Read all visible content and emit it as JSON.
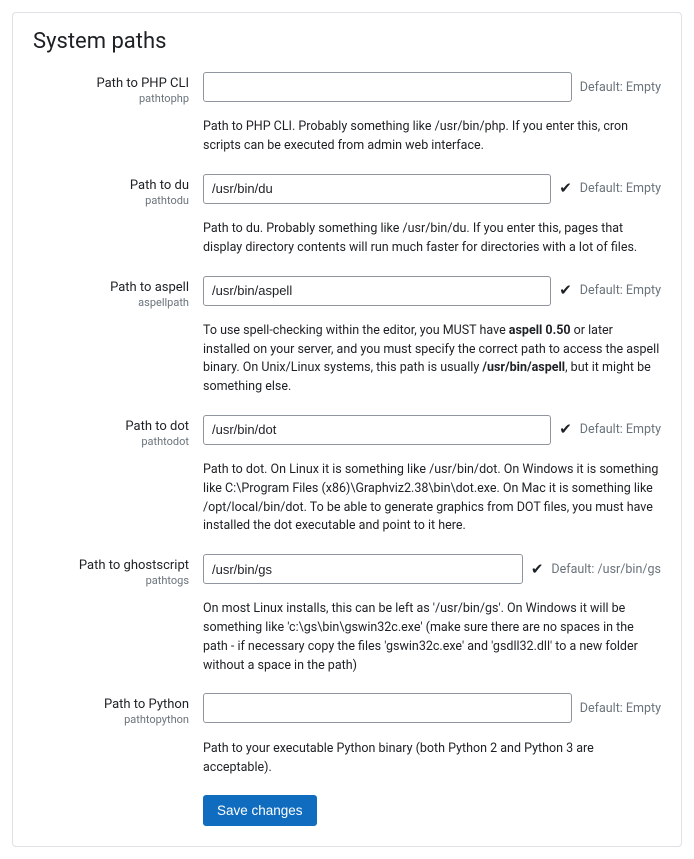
{
  "section_title": "System paths",
  "fields": {
    "phpcli": {
      "label": "Path to PHP CLI",
      "name": "pathtophp",
      "value": "",
      "show_check": false,
      "default_text": "Default: Empty",
      "desc_html": "Path to PHP CLI. Probably something like /usr/bin/php. If you enter this, cron scripts can be executed from admin web interface."
    },
    "du": {
      "label": "Path to du",
      "name": "pathtodu",
      "value": "/usr/bin/du",
      "show_check": true,
      "default_text": "Default: Empty",
      "desc_html": "Path to du. Probably something like /usr/bin/du. If you enter this, pages that display directory contents will run much faster for directories with a lot of files."
    },
    "aspell": {
      "label": "Path to aspell",
      "name": "aspellpath",
      "value": "/usr/bin/aspell",
      "show_check": true,
      "default_text": "Default: Empty",
      "desc_html": "To use spell-checking within the editor, you MUST have <b>aspell 0.50</b> or later installed on your server, and you must specify the correct path to access the aspell binary. On Unix/Linux systems, this path is usually <b>/usr/bin/aspell</b>, but it might be something else."
    },
    "dot": {
      "label": "Path to dot",
      "name": "pathtodot",
      "value": "/usr/bin/dot",
      "show_check": true,
      "default_text": "Default: Empty",
      "desc_html": "Path to dot. On Linux it is something like /usr/bin/dot. On Windows it is something like C:\\Program Files (x86)\\Graphviz2.38\\bin\\dot.exe. On Mac it is something like /opt/local/bin/dot. To be able to generate graphics from DOT files, you must have installed the dot executable and point to it here."
    },
    "gs": {
      "label": "Path to ghostscript",
      "name": "pathtogs",
      "value": "/usr/bin/gs",
      "show_check": true,
      "default_text": "Default: /usr/bin/gs",
      "desc_html": "On most Linux installs, this can be left as '/usr/bin/gs'. On Windows it will be something like 'c:\\gs\\bin\\gswin32c.exe' (make sure there are no spaces in the path - if necessary copy the files 'gswin32c.exe' and 'gsdll32.dll' to a new folder without a space in the path)"
    },
    "python": {
      "label": "Path to Python",
      "name": "pathtopython",
      "value": "",
      "show_check": false,
      "default_text": "Default: Empty",
      "desc_html": "Path to your executable Python binary (both Python 2 and Python 3 are acceptable)."
    }
  },
  "save_label": "Save changes",
  "check_glyph": "✔"
}
